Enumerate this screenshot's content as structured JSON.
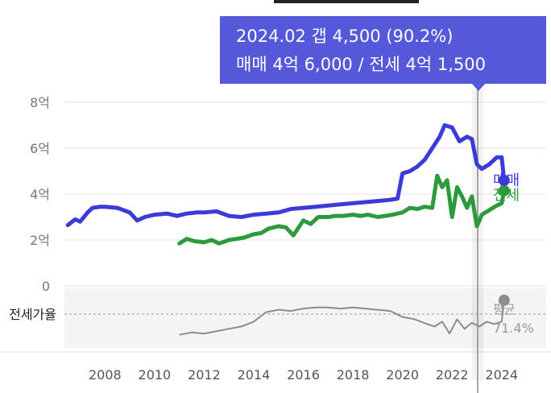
{
  "tooltip": {
    "line1": "2024.02  갭 4,500 (90.2%)",
    "line2": "매매 4억 6,000 / 전세 4억 1,500"
  },
  "colors": {
    "sale": "#3b3bd9",
    "jeonse": "#2e9a3e",
    "ratio": "#8c8c8c",
    "grid": "#e6e6e6",
    "tooltip": "#5558d9"
  },
  "chart_data": [
    {
      "type": "line",
      "xlim": [
        2006.3,
        2025.6
      ],
      "ylim": [
        0,
        8
      ],
      "yticks": [
        {
          "value": 8,
          "label": "8억"
        },
        {
          "value": 6,
          "label": "6억"
        },
        {
          "value": 4,
          "label": "4억"
        },
        {
          "value": 2,
          "label": "2억"
        },
        {
          "value": 0,
          "label": "0"
        }
      ],
      "xticks": [
        "2008",
        "2010",
        "2012",
        "2014",
        "2016",
        "2018",
        "2020",
        "2022",
        "2024"
      ],
      "series": [
        {
          "name": "매매",
          "x": [
            2006.5,
            2006.8,
            2007.0,
            2007.3,
            2007.5,
            2007.8,
            2008.0,
            2008.5,
            2009.0,
            2009.3,
            2009.6,
            2010.0,
            2010.5,
            2010.9,
            2011.3,
            2011.7,
            2012.0,
            2012.5,
            2013.0,
            2013.5,
            2014.0,
            2014.5,
            2015.0,
            2015.5,
            2016.0,
            2016.5,
            2017.0,
            2017.5,
            2018.0,
            2018.5,
            2019.0,
            2019.5,
            2019.8,
            2020.0,
            2020.3,
            2020.6,
            2020.9,
            2021.2,
            2021.5,
            2021.7,
            2022.0,
            2022.3,
            2022.6,
            2022.8,
            2023.0,
            2023.2,
            2023.5,
            2023.8,
            2024.0,
            2024.1
          ],
          "values": [
            2.65,
            2.9,
            2.8,
            3.2,
            3.4,
            3.45,
            3.45,
            3.4,
            3.2,
            2.85,
            3.0,
            3.1,
            3.15,
            3.05,
            3.15,
            3.2,
            3.2,
            3.25,
            3.05,
            3.0,
            3.1,
            3.15,
            3.2,
            3.35,
            3.4,
            3.45,
            3.5,
            3.55,
            3.6,
            3.65,
            3.7,
            3.75,
            3.8,
            4.9,
            5.0,
            5.2,
            5.5,
            6.0,
            6.5,
            7.0,
            6.9,
            6.3,
            6.5,
            6.4,
            5.3,
            5.1,
            5.3,
            5.6,
            5.6,
            4.6
          ]
        },
        {
          "name": "전세",
          "x": [
            2011.0,
            2011.3,
            2011.6,
            2012.0,
            2012.3,
            2012.6,
            2013.0,
            2013.3,
            2013.6,
            2014.0,
            2014.3,
            2014.6,
            2015.0,
            2015.3,
            2015.6,
            2016.0,
            2016.3,
            2016.6,
            2017.0,
            2017.3,
            2017.6,
            2018.0,
            2018.3,
            2018.6,
            2019.0,
            2019.3,
            2019.6,
            2020.0,
            2020.3,
            2020.6,
            2020.9,
            2021.2,
            2021.4,
            2021.6,
            2021.8,
            2022.0,
            2022.2,
            2022.4,
            2022.6,
            2022.8,
            2023.0,
            2023.2,
            2023.5,
            2023.8,
            2024.0,
            2024.1
          ],
          "values": [
            1.85,
            2.05,
            1.95,
            1.9,
            2.0,
            1.85,
            2.0,
            2.05,
            2.1,
            2.25,
            2.3,
            2.5,
            2.6,
            2.55,
            2.2,
            2.85,
            2.7,
            3.0,
            3.0,
            3.05,
            3.05,
            3.1,
            3.05,
            3.1,
            3.0,
            3.05,
            3.1,
            3.2,
            3.4,
            3.35,
            3.45,
            3.4,
            4.8,
            4.3,
            4.6,
            3.0,
            4.3,
            3.9,
            3.4,
            3.9,
            2.6,
            3.1,
            3.3,
            3.5,
            3.6,
            4.15
          ]
        }
      ]
    },
    {
      "type": "line",
      "ylabel": "전세가율",
      "xlim": [
        2006.3,
        2025.6
      ],
      "series": [
        {
          "name": "전세가율",
          "last_label": "평균",
          "last_value_label": "71.4%",
          "x": [
            2011.0,
            2011.5,
            2012.0,
            2012.5,
            2013.0,
            2013.5,
            2014.0,
            2014.5,
            2015.0,
            2015.5,
            2016.0,
            2016.5,
            2017.0,
            2017.5,
            2018.0,
            2018.5,
            2019.0,
            2019.5,
            2020.0,
            2020.5,
            2021.0,
            2021.3,
            2021.6,
            2021.9,
            2022.2,
            2022.5,
            2022.8,
            2023.1,
            2023.4,
            2023.7,
            2024.0,
            2024.1
          ],
          "values": [
            61,
            63,
            62,
            64,
            66,
            68,
            72,
            80,
            82,
            81,
            83,
            84,
            84,
            83,
            84,
            83,
            82,
            81,
            76,
            74,
            70,
            68,
            72,
            62,
            74,
            66,
            71,
            68,
            72,
            70,
            72,
            90
          ]
        }
      ]
    }
  ]
}
